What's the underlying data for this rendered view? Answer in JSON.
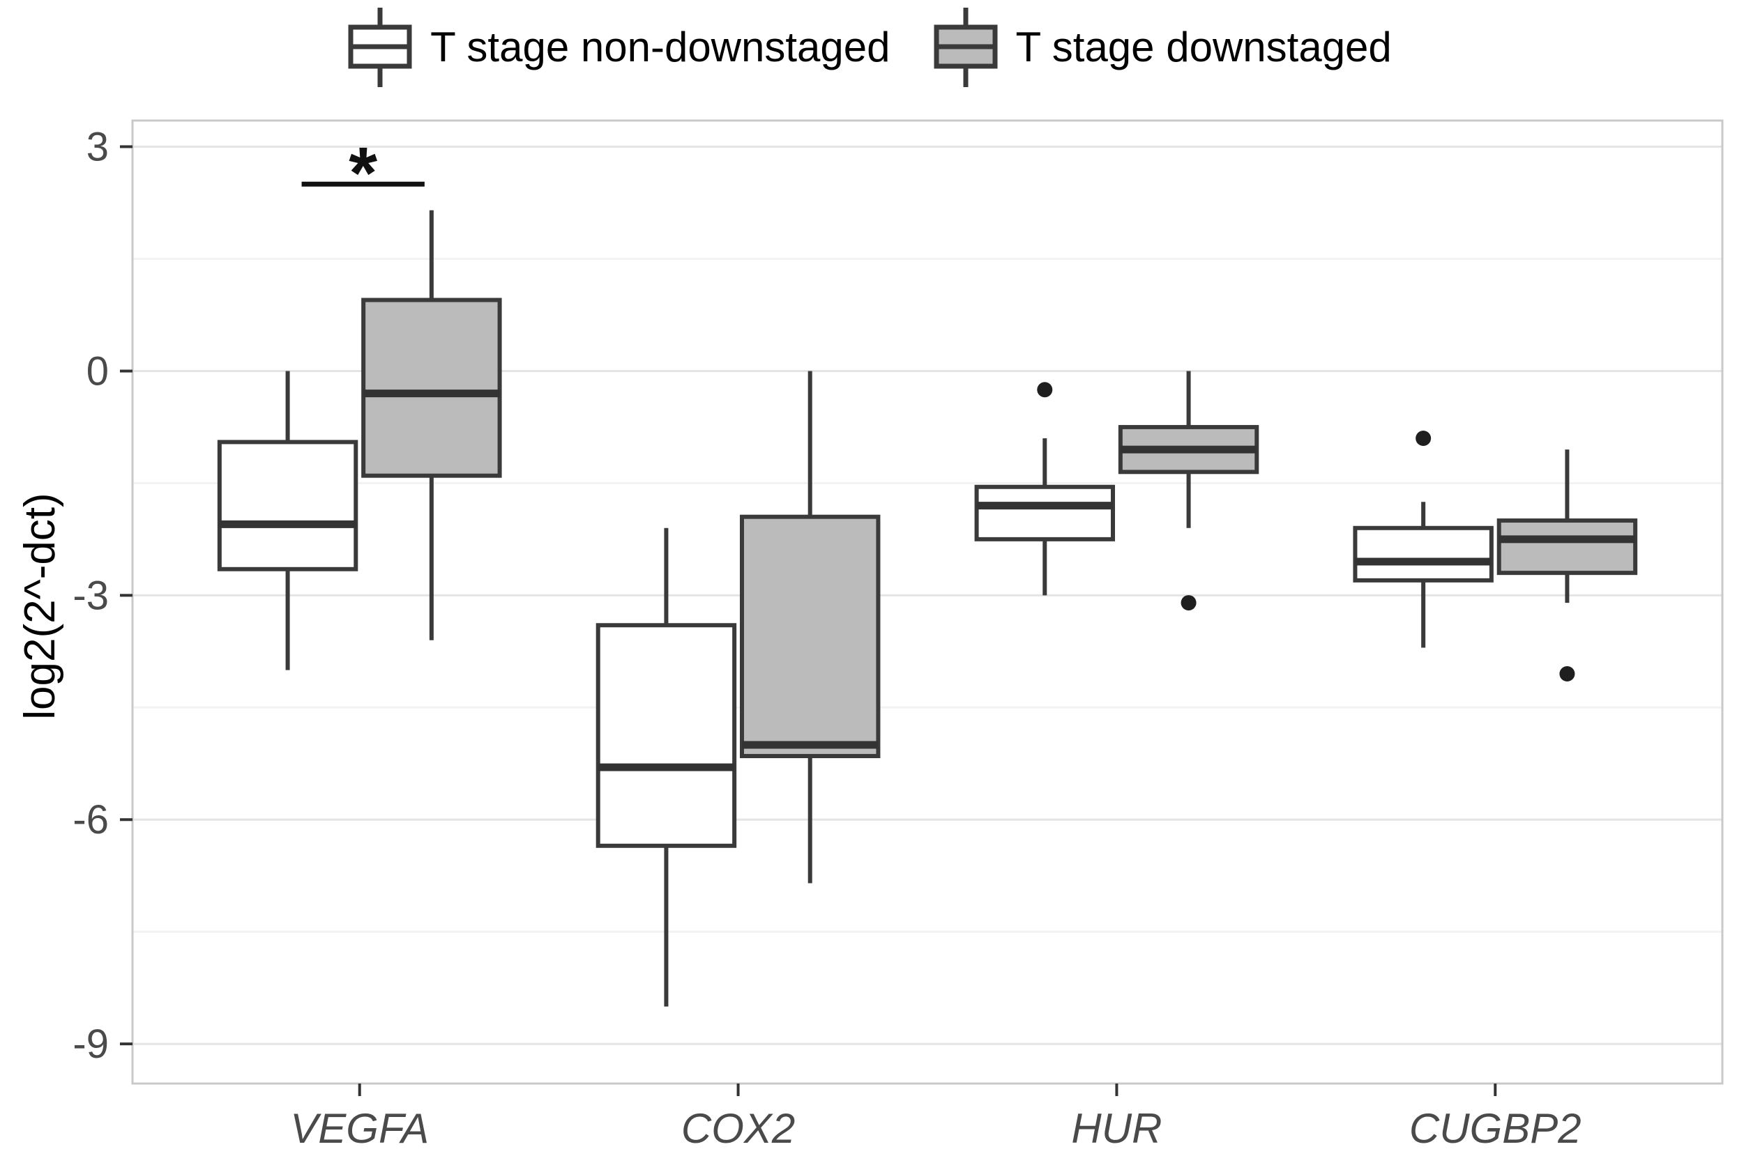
{
  "legend": {
    "position": "top-center",
    "items": [
      {
        "glyph": "boxplot-key-white",
        "label_from_series": 0
      },
      {
        "glyph": "boxplot-key-gray",
        "label_from_series": 1
      }
    ]
  },
  "chart_data": {
    "type": "boxplot",
    "title": "",
    "xlabel": "",
    "ylabel": "log2(2^-dct)",
    "categories": [
      "VEGFA",
      "COX2",
      "HUR",
      "CUGBP2"
    ],
    "categories_style": "italic",
    "y_ticks": [
      3,
      0,
      -3,
      -6,
      -9
    ],
    "y_tick_labels": [
      "3",
      "0",
      "-3",
      "-6",
      "-9"
    ],
    "y_minor_ticks": [
      1.5,
      -1.5,
      -4.5,
      -7.5
    ],
    "ylim": [
      -9.53,
      3.35
    ],
    "grid": "major-and-minor",
    "legend_position": "top",
    "series": [
      {
        "name": "T stage non-downstaged",
        "fill": "#ffffff",
        "boxes": [
          {
            "category": "VEGFA",
            "whisker_low": -4.0,
            "q1": -2.65,
            "median": -2.05,
            "q3": -0.95,
            "whisker_high": 0.0,
            "outliers": []
          },
          {
            "category": "COX2",
            "whisker_low": -8.5,
            "q1": -6.35,
            "median": -5.3,
            "q3": -3.4,
            "whisker_high": -2.1,
            "outliers": []
          },
          {
            "category": "HUR",
            "whisker_low": -3.0,
            "q1": -2.25,
            "median": -1.8,
            "q3": -1.55,
            "whisker_high": -0.9,
            "outliers": [
              -0.25
            ]
          },
          {
            "category": "CUGBP2",
            "whisker_low": -3.7,
            "q1": -2.8,
            "median": -2.55,
            "q3": -2.1,
            "whisker_high": -1.75,
            "outliers": [
              -0.9
            ]
          }
        ]
      },
      {
        "name": "T stage downstaged",
        "fill": "#bbbbbb",
        "boxes": [
          {
            "category": "VEGFA",
            "whisker_low": -3.6,
            "q1": -1.4,
            "median": -0.3,
            "q3": 0.95,
            "whisker_high": 2.15,
            "outliers": []
          },
          {
            "category": "COX2",
            "whisker_low": -6.85,
            "q1": -5.15,
            "median": -5.0,
            "q3": -1.95,
            "whisker_high": 0.0,
            "outliers": []
          },
          {
            "category": "HUR",
            "whisker_low": -2.1,
            "q1": -1.35,
            "median": -1.05,
            "q3": -0.75,
            "whisker_high": 0.0,
            "outliers": [
              -3.1
            ]
          },
          {
            "category": "CUGBP2",
            "whisker_low": -3.1,
            "q1": -2.7,
            "median": -2.25,
            "q3": -2.0,
            "whisker_high": -1.05,
            "outliers": [
              -4.05
            ]
          }
        ]
      }
    ],
    "annotations": [
      {
        "type": "significance-bracket",
        "category": "VEGFA",
        "label": "*",
        "bar_value": 2.5
      }
    ],
    "colors": {
      "box_border": "#3a3a3a",
      "median_line": "#333333",
      "whisker": "#3a3a3a",
      "outlier": "#1f1f1f",
      "grid_major": "#e4e4e4",
      "grid_minor": "#f2f2f2",
      "panel_border": "#c9c9c9",
      "panel_background": "#ffffff",
      "tick_mark": "#333333",
      "tick_label": "#4a4a4a",
      "axis_title": "#000000",
      "annotation": "#111111"
    }
  }
}
